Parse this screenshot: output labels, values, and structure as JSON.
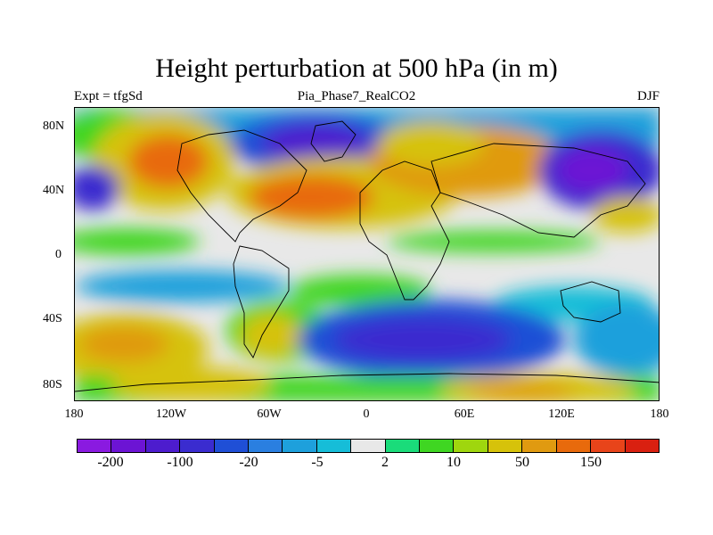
{
  "title": "Height perturbation at 500 hPa (in m)",
  "subtitle_left": "Expt = tfgSd",
  "subtitle_center": "Pia_Phase7_RealCO2",
  "subtitle_right": "DJF",
  "y_axis_labels": [
    "80N",
    "40N",
    "0",
    "40S",
    "80S"
  ],
  "x_axis_labels": [
    "180",
    "120W",
    "60W",
    "0",
    "60E",
    "120E",
    "180"
  ],
  "colorbar": {
    "colors": [
      "#8a1ae0",
      "#6c14d4",
      "#4d1cce",
      "#3a2ccf",
      "#1f4fd6",
      "#2a7fe0",
      "#1ea0dc",
      "#16bdd8",
      "#e8e8e8",
      "#1adc7a",
      "#3fd622",
      "#9fd60e",
      "#d6c20a",
      "#e09a10",
      "#e86a0c",
      "#e8441a",
      "#d92010"
    ],
    "labels": [
      "-200",
      "-100",
      "-20",
      "-5",
      "2",
      "10",
      "50",
      "150"
    ]
  }
}
